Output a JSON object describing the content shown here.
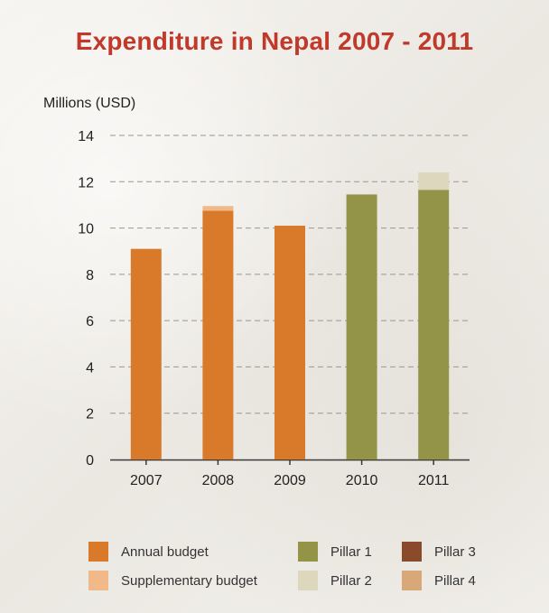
{
  "chart_data": {
    "type": "bar",
    "title": "Expenditure in Nepal 2007 - 2011",
    "ylabel": "Millions (USD)",
    "xlabel": "",
    "categories": [
      "2007",
      "2008",
      "2009",
      "2010",
      "2011"
    ],
    "ylim": [
      0,
      14
    ],
    "yticks": [
      0,
      2,
      4,
      6,
      8,
      10,
      12,
      14
    ],
    "grid": "dashed horizontal",
    "stacked": true,
    "series": [
      {
        "name": "Annual budget",
        "color": "#d97a2b",
        "values": [
          9.1,
          10.75,
          10.1,
          0,
          0
        ]
      },
      {
        "name": "Supplementary budget",
        "color": "#f1b98a",
        "values": [
          0,
          0.2,
          0,
          0,
          0
        ]
      },
      {
        "name": "Pillar 1",
        "color": "#949449",
        "values": [
          0,
          0,
          0,
          11.45,
          11.65
        ]
      },
      {
        "name": "Pillar 2",
        "color": "#dcd7bd",
        "values": [
          0,
          0,
          0,
          0,
          0.75
        ]
      },
      {
        "name": "Pillar 3",
        "color": "#8b4a2b",
        "values": [
          0,
          0,
          0,
          0,
          0
        ]
      },
      {
        "name": "Pillar 4",
        "color": "#d8a879",
        "values": [
          0,
          0,
          0,
          0,
          0
        ]
      }
    ],
    "legend": [
      {
        "label": "Annual budget",
        "color": "#d97a2b"
      },
      {
        "label": "Supplementary budget",
        "color": "#f1b98a"
      },
      {
        "label": "Pillar 1",
        "color": "#949449"
      },
      {
        "label": "Pillar 2",
        "color": "#dcd7bd"
      },
      {
        "label": "Pillar 3",
        "color": "#8b4a2b"
      },
      {
        "label": "Pillar 4",
        "color": "#d8a879"
      }
    ],
    "legend_position": "bottom"
  }
}
